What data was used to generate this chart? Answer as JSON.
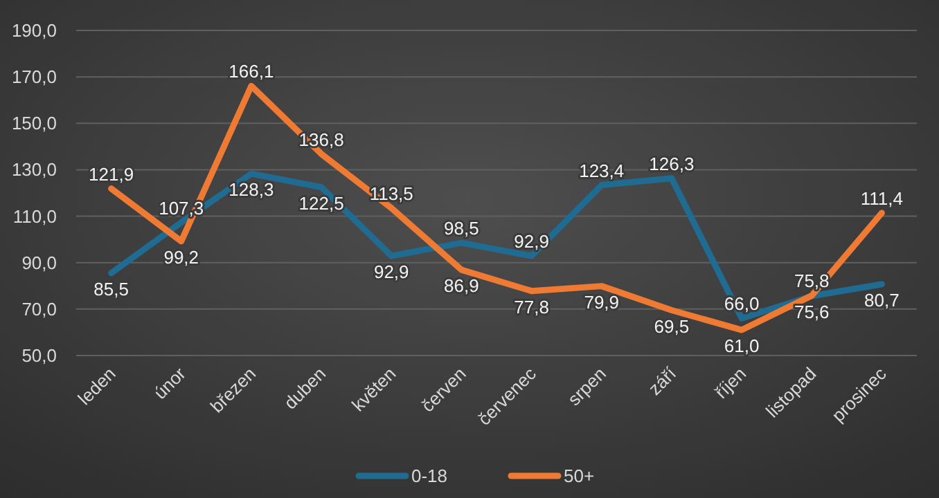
{
  "chart_data": {
    "type": "line",
    "categories": [
      "leden",
      "únor",
      "březen",
      "duben",
      "květen",
      "červen",
      "červenec",
      "srpen",
      "září",
      "říjen",
      "listopad",
      "prosinec"
    ],
    "series": [
      {
        "name": "0-18",
        "color": "#1f6b92",
        "values": [
          85.5,
          107.3,
          128.3,
          122.5,
          92.9,
          98.5,
          92.9,
          123.4,
          126.3,
          66.0,
          75.6,
          80.7
        ],
        "value_labels": [
          "85,5",
          "107,3",
          "128,3",
          "122,5",
          "92,9",
          "98,5",
          "92,9",
          "123,4",
          "126,3",
          "66,0",
          "75,6",
          "80,7"
        ]
      },
      {
        "name": "50+",
        "color": "#ef7a33",
        "values": [
          121.9,
          99.2,
          166.1,
          136.8,
          113.5,
          86.9,
          77.8,
          79.9,
          69.5,
          61.0,
          75.8,
          111.4
        ],
        "value_labels": [
          "121,9",
          "99,2",
          "166,1",
          "136,8",
          "113,5",
          "86,9",
          "77,8",
          "79,9",
          "69,5",
          "61,0",
          "75,8",
          "111,4"
        ]
      }
    ],
    "ylim": [
      50,
      190
    ],
    "yticks": [
      {
        "value": 50,
        "label": "50,0"
      },
      {
        "value": 70,
        "label": "70,0"
      },
      {
        "value": 90,
        "label": "90,0"
      },
      {
        "value": 110,
        "label": "110,0"
      },
      {
        "value": 130,
        "label": "130,0"
      },
      {
        "value": 150,
        "label": "150,0"
      },
      {
        "value": 170,
        "label": "170,0"
      },
      {
        "value": 190,
        "label": "190,0"
      }
    ],
    "grid": "y",
    "legend": "bottom",
    "marker": "none",
    "line_style": "solid"
  }
}
